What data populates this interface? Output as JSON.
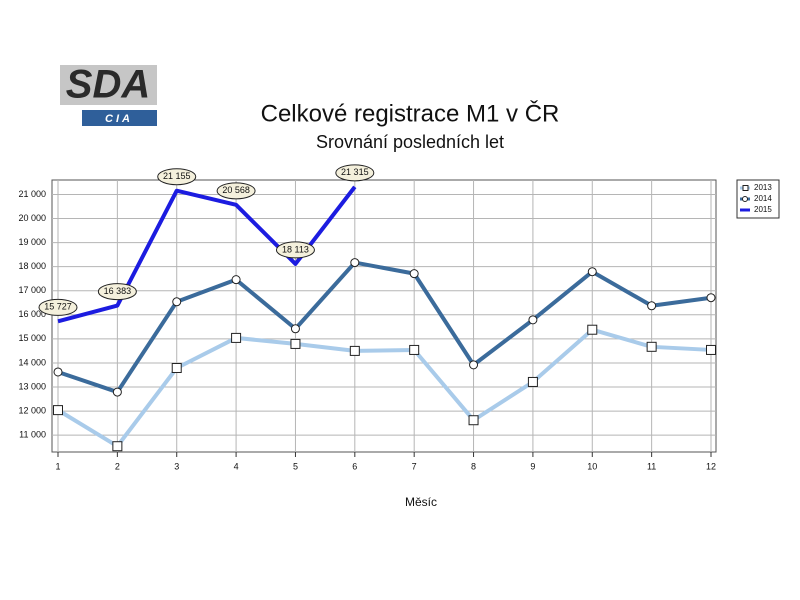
{
  "logo": {
    "name": "SDA",
    "sub": "CIA"
  },
  "chart_data": {
    "type": "line",
    "title": "Celkové registrace M1 v ČR",
    "subtitle": "Srovnání posledních let",
    "x_label": "Měsíc",
    "x": [
      1,
      2,
      3,
      4,
      5,
      6,
      7,
      8,
      9,
      10,
      11,
      12
    ],
    "xlim": [
      1,
      12
    ],
    "xticks": [
      1,
      2,
      3,
      4,
      5,
      6,
      7,
      8,
      9,
      10,
      11,
      12
    ],
    "ylim": [
      10300,
      21600
    ],
    "yticks": [
      {
        "value": 11000,
        "label": "11 000"
      },
      {
        "value": 12000,
        "label": "12 000"
      },
      {
        "value": 13000,
        "label": "13 000"
      },
      {
        "value": 14000,
        "label": "14 000"
      },
      {
        "value": 15000,
        "label": "15 000"
      },
      {
        "value": 16000,
        "label": "16 000"
      },
      {
        "value": 17000,
        "label": "17 000"
      },
      {
        "value": 18000,
        "label": "18 000"
      },
      {
        "value": 19000,
        "label": "19 000"
      },
      {
        "value": 20000,
        "label": "20 000"
      },
      {
        "value": 21000,
        "label": "21 000"
      }
    ],
    "grid": true,
    "legend": "top-right",
    "series": [
      {
        "name": "2013",
        "color": "#a9cbea",
        "marker": "square",
        "values": [
          12040,
          10540,
          13790,
          15040,
          14790,
          14500,
          14540,
          11620,
          13210,
          15380,
          14670,
          14540
        ]
      },
      {
        "name": "2014",
        "color": "#3b6b9b",
        "marker": "circle",
        "values": [
          13625,
          12790,
          16540,
          17460,
          15420,
          18170,
          17710,
          13920,
          15790,
          17790,
          16375,
          16710
        ]
      },
      {
        "name": "2015",
        "color": "#1c1ce0",
        "values": [
          15727,
          16383,
          21155,
          20568,
          18113,
          21315,
          null,
          null,
          null,
          null,
          null,
          null
        ],
        "value_labels": [
          "15 727",
          "16 383",
          "21 155",
          "20 568",
          "18 113",
          "21 315",
          null,
          null,
          null,
          null,
          null,
          null
        ]
      }
    ]
  }
}
